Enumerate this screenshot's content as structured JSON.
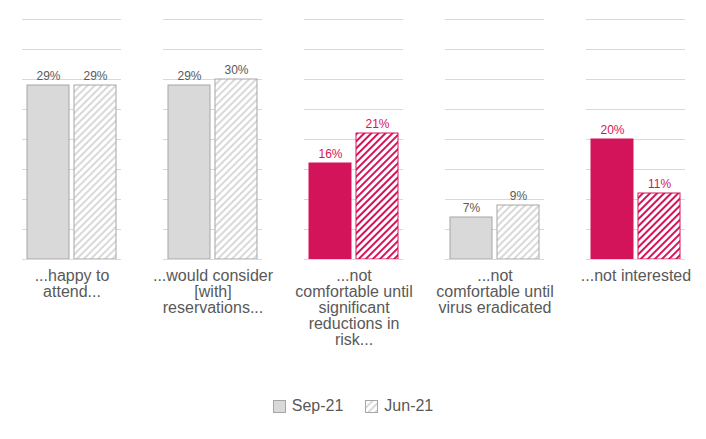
{
  "chart_data": {
    "type": "bar",
    "categories": [
      "...happy to attend...",
      "...would consider [with] reservations...",
      "...not comfortable until significant reductions in risk...",
      "...not comfortable until virus eradicated",
      "...not interested"
    ],
    "series": [
      {
        "name": "Sep-21",
        "color": "#d9d9d9",
        "colors": [
          "#d9d9d9",
          "#d9d9d9",
          "#d4145a",
          "#d9d9d9",
          "#d4145a"
        ],
        "values": [
          29,
          29,
          16,
          7,
          20
        ],
        "value_labels": [
          "29%",
          "29%",
          "16%",
          "7%",
          "20%"
        ]
      },
      {
        "name": "Jun-21",
        "color": "#d9d9d9",
        "colors": [
          "#d9d9d9",
          "#d9d9d9",
          "#d4145a",
          "#d9d9d9",
          "#d4145a"
        ],
        "values": [
          29,
          30,
          21,
          9,
          11
        ],
        "value_labels": [
          "29%",
          "30%",
          "21%",
          "9%",
          "11%"
        ]
      }
    ],
    "ylim": [
      0,
      40
    ],
    "yticks": [
      0,
      5,
      10,
      15,
      20,
      25,
      30,
      35,
      40
    ],
    "grid": true,
    "tick_labels": "x",
    "data_labels": true,
    "legend": "bottom"
  }
}
